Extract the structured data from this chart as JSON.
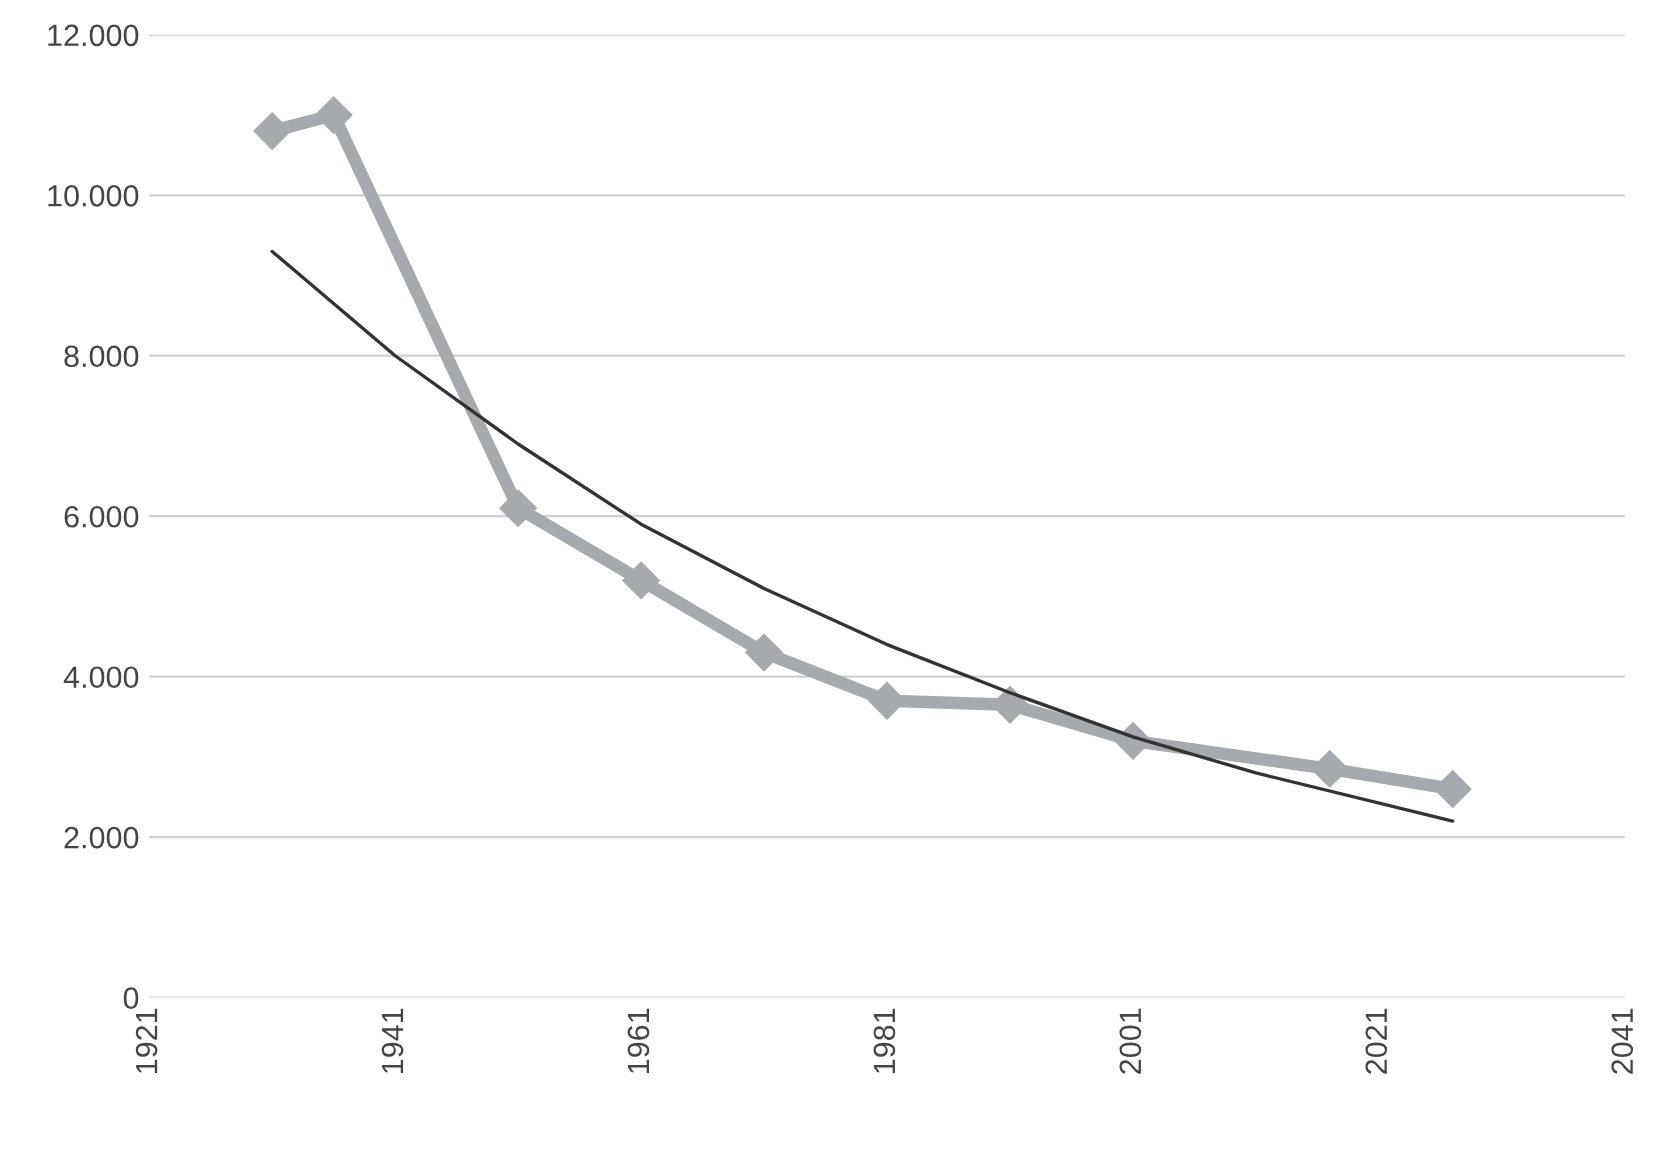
{
  "chart_data": {
    "type": "line",
    "series": [
      {
        "color": "#a6a9ad",
        "marker": "diamond",
        "x": [
          1931,
          1936,
          1951,
          1961,
          1971,
          1981,
          1991,
          2001,
          2017,
          2027
        ],
        "values": [
          10800,
          11000,
          6100,
          5200,
          4300,
          3700,
          3650,
          3200,
          2850,
          2600
        ]
      },
      {
        "color": "#333333",
        "marker": "none",
        "x": [
          1931,
          1941,
          1951,
          1961,
          1971,
          1981,
          1991,
          2001,
          2011,
          2027
        ],
        "values": [
          9300,
          8000,
          6900,
          5900,
          5100,
          4400,
          3800,
          3250,
          2800,
          2200
        ]
      }
    ],
    "xlim": [
      1921,
      2041
    ],
    "xticks": [
      1921,
      1941,
      1961,
      1981,
      2001,
      2021,
      2041
    ],
    "ylim": [
      0,
      12000
    ],
    "yticks": [
      0,
      {
        "value": 2000,
        "label": "2.000"
      },
      {
        "value": 4000,
        "label": "4.000"
      },
      {
        "value": 6000,
        "label": "6.000"
      },
      {
        "value": 8000,
        "label": "8.000"
      },
      {
        "value": 10000,
        "label": "10.000"
      },
      {
        "value": 12000,
        "label": "12.000"
      }
    ],
    "grid": "y",
    "legend": false,
    "line_style": "solid"
  }
}
